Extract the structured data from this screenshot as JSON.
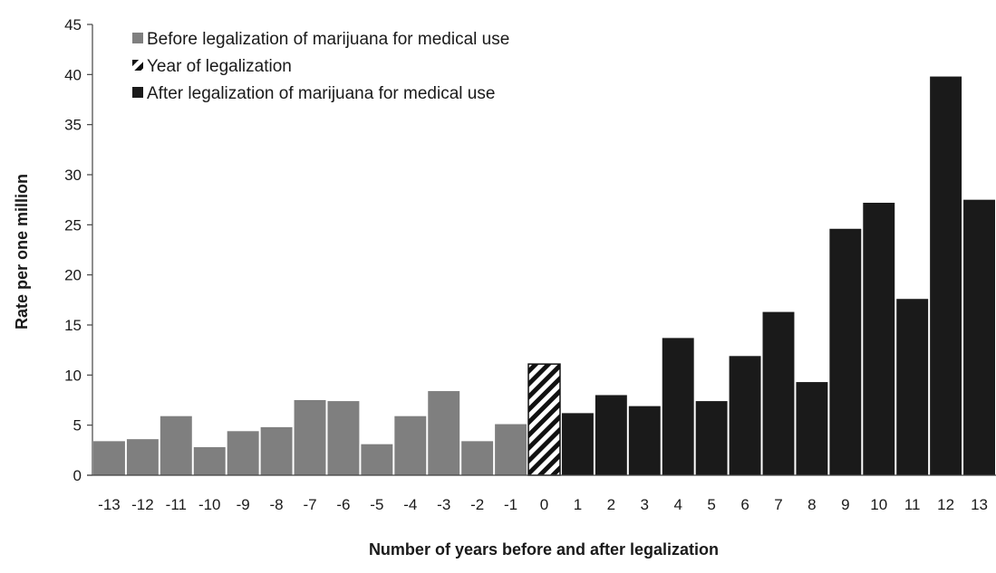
{
  "chart_data": {
    "type": "bar",
    "title": "",
    "xlabel": "Number of years before and after legalization",
    "ylabel": "Rate per one million",
    "ylim": [
      0,
      45
    ],
    "yticks": [
      0,
      5,
      10,
      15,
      20,
      25,
      30,
      35,
      40,
      45
    ],
    "grid": false,
    "legend_position": "top-left",
    "categories": [
      "-13",
      "-12",
      "-11",
      "-10",
      "-9",
      "-8",
      "-7",
      "-6",
      "-5",
      "-4",
      "-3",
      "-2",
      "-1",
      "0",
      "1",
      "2",
      "3",
      "4",
      "5",
      "6",
      "7",
      "8",
      "9",
      "10",
      "11",
      "12",
      "13"
    ],
    "values": [
      3.4,
      3.6,
      5.9,
      2.8,
      4.4,
      4.8,
      7.5,
      7.4,
      3.1,
      5.9,
      8.4,
      3.4,
      5.1,
      11.1,
      6.2,
      8.0,
      6.9,
      13.7,
      7.4,
      11.9,
      16.3,
      9.3,
      24.6,
      27.2,
      17.6,
      39.8,
      27.5
    ],
    "bar_groups": [
      "before",
      "before",
      "before",
      "before",
      "before",
      "before",
      "before",
      "before",
      "before",
      "before",
      "before",
      "before",
      "before",
      "legalization",
      "after",
      "after",
      "after",
      "after",
      "after",
      "after",
      "after",
      "after",
      "after",
      "after",
      "after",
      "after",
      "after"
    ],
    "series": [
      {
        "key": "before",
        "name": "Before legalization of marijuana for medical use",
        "color": "#7f7f7f",
        "pattern": "solid"
      },
      {
        "key": "legalization",
        "name": "Year of legalization",
        "color": "#111111",
        "pattern": "hatched"
      },
      {
        "key": "after",
        "name": "After legalization of marijuana for medical use",
        "color": "#1a1a1a",
        "pattern": "solid"
      }
    ]
  }
}
